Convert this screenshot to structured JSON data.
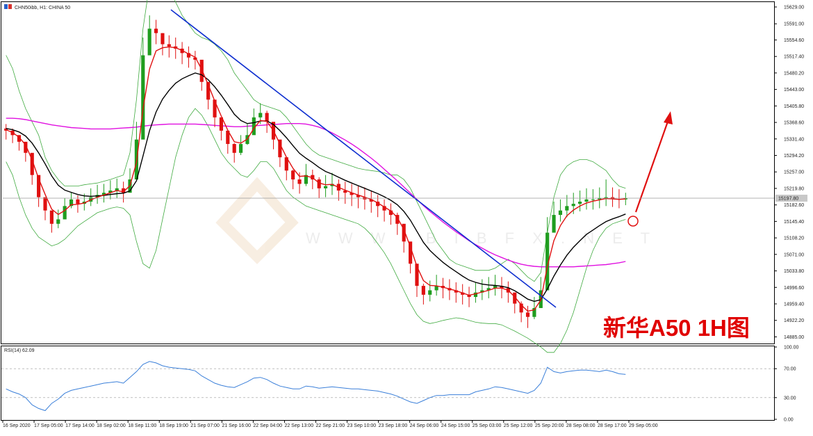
{
  "header": {
    "symbol_text": "CHN50ibb, H1:  CHINA 50"
  },
  "annotation": {
    "title": "新华A50 1H图"
  },
  "watermark": {
    "text": "W W W . B I B F X . N E T"
  },
  "colors": {
    "bull": "#1f9d1f",
    "bear": "#e01010",
    "ema_fast": "#e01010",
    "ema_slow": "#000000",
    "ma_long": "#e010e0",
    "bands": "#3faa3f",
    "trendline": "#1030d0",
    "arrow": "#e01010",
    "rsi": "#3a7fd9",
    "current_price_bg": "#c8c8c8"
  },
  "chart_data": [
    {
      "type": "candlestick",
      "symbol": "CHN50ibb",
      "timeframe": "H1",
      "instrument": "CHINA 50",
      "ylim": [
        14870,
        15640
      ],
      "y_ticks": [
        15629.0,
        15591.0,
        15554.6,
        15517.4,
        15480.2,
        15443.0,
        15405.8,
        15368.6,
        15331.4,
        15294.2,
        15257.0,
        15219.8,
        15182.6,
        15145.4,
        15108.2,
        15071.0,
        15033.8,
        14996.6,
        14959.4,
        14922.2,
        14885.0
      ],
      "current_price": 15197.8,
      "x_labels": [
        "16 Sep 2020",
        "17 Sep 05:00",
        "17 Sep 14:00",
        "18 Sep 02:00",
        "18 Sep 11:00",
        "18 Sep 19:00",
        "21 Sep 07:00",
        "21 Sep 16:00",
        "22 Sep 04:00",
        "22 Sep 13:00",
        "22 Sep 21:00",
        "23 Sep 10:00",
        "23 Sep 18:00",
        "24 Sep 06:00",
        "24 Sep 15:00",
        "25 Sep 03:00",
        "25 Sep 12:00",
        "25 Sep 20:00",
        "28 Sep 08:00",
        "28 Sep 17:00",
        "29 Sep 05:00"
      ],
      "close": [
        15350,
        15340,
        15325,
        15300,
        15250,
        15200,
        15170,
        15140,
        15150,
        15180,
        15195,
        15185,
        15190,
        15200,
        15205,
        15210,
        15215,
        15220,
        15210,
        15240,
        15330,
        15520,
        15580,
        15570,
        15545,
        15540,
        15535,
        15525,
        15515,
        15510,
        15460,
        15420,
        15380,
        15350,
        15320,
        15300,
        15320,
        15340,
        15380,
        15390,
        15370,
        15330,
        15290,
        15260,
        15240,
        15230,
        15250,
        15240,
        15220,
        15225,
        15230,
        15215,
        15210,
        15205,
        15200,
        15195,
        15190,
        15180,
        15170,
        15160,
        15140,
        15100,
        15050,
        15000,
        14980,
        14990,
        15000,
        14995,
        14990,
        14985,
        14980,
        14975,
        14985,
        14990,
        14995,
        15000,
        14995,
        14985,
        14960,
        14940,
        14930,
        14950,
        14990,
        15120,
        15160,
        15170,
        15180,
        15185,
        15190,
        15195,
        15195,
        15198,
        15200,
        15196,
        15195,
        15197.8
      ],
      "high": [
        15365,
        15355,
        15340,
        15320,
        15275,
        15225,
        15195,
        15165,
        15172,
        15198,
        15212,
        15204,
        15208,
        15220,
        15228,
        15230,
        15238,
        15242,
        15235,
        15265,
        15370,
        15560,
        15610,
        15600,
        15570,
        15565,
        15560,
        15550,
        15540,
        15530,
        15480,
        15445,
        15405,
        15375,
        15340,
        15322,
        15340,
        15365,
        15400,
        15412,
        15395,
        15355,
        15312,
        15285,
        15262,
        15256,
        15275,
        15262,
        15245,
        15250,
        15255,
        15240,
        15235,
        15230,
        15225,
        15222,
        15215,
        15205,
        15195,
        15186,
        15165,
        15125,
        15075,
        15030,
        15005,
        15012,
        15025,
        15018,
        15015,
        15008,
        15004,
        14998,
        15008,
        15015,
        15020,
        15025,
        15020,
        15010,
        14985,
        14965,
        14955,
        14975,
        15020,
        15155,
        15190,
        15195,
        15205,
        15210,
        15215,
        15220,
        15218,
        15222,
        15240,
        15222,
        15218,
        15210
      ],
      "low": [
        15330,
        15322,
        15305,
        15280,
        15228,
        15178,
        15148,
        15120,
        15130,
        15160,
        15175,
        15165,
        15170,
        15180,
        15185,
        15188,
        15195,
        15198,
        15188,
        15215,
        15300,
        15480,
        15552,
        15545,
        15520,
        15515,
        15512,
        15500,
        15492,
        15488,
        15440,
        15398,
        15358,
        15328,
        15298,
        15278,
        15295,
        15318,
        15355,
        15365,
        15345,
        15308,
        15268,
        15238,
        15218,
        15208,
        15225,
        15218,
        15198,
        15200,
        15205,
        15192,
        15185,
        15180,
        15175,
        15172,
        15165,
        15155,
        15145,
        15138,
        15115,
        15075,
        15028,
        14975,
        14958,
        14965,
        14978,
        14972,
        14968,
        14962,
        14958,
        14952,
        14962,
        14968,
        14972,
        14978,
        14972,
        14962,
        14938,
        14918,
        14905,
        14925,
        14965,
        15090,
        15135,
        15145,
        15155,
        15162,
        15168,
        15172,
        15172,
        15175,
        15180,
        15178,
        15175,
        15182
      ],
      "ema_fast": [
        15352,
        15346,
        15335,
        15318,
        15284,
        15242,
        15206,
        15173,
        15161,
        15170,
        15183,
        15184,
        15187,
        15194,
        15200,
        15205,
        15210,
        15215,
        15212,
        15226,
        15278,
        15399,
        15489,
        15530,
        15537,
        15539,
        15537,
        15531,
        15523,
        15516,
        15488,
        15454,
        15417,
        15383,
        15351,
        15325,
        15322,
        15331,
        15355,
        15373,
        15371,
        15350,
        15320,
        15290,
        15265,
        15247,
        15248,
        15244,
        15232,
        15228,
        15229,
        15222,
        15216,
        15210,
        15205,
        15200,
        15195,
        15187,
        15178,
        15169,
        15154,
        15127,
        15088,
        15044,
        15012,
        15001,
        15000,
        14997,
        14993,
        14989,
        14984,
        14979,
        14982,
        14986,
        14990,
        14995,
        14995,
        14990,
        14975,
        14957,
        14943,
        14946,
        14968,
        15044,
        15102,
        15136,
        15158,
        15171,
        15180,
        15187,
        15191,
        15194,
        15197,
        15196,
        15195,
        15196
      ],
      "ema_slow": [
        15355,
        15352,
        15347,
        15338,
        15322,
        15300,
        15275,
        15248,
        15227,
        15216,
        15211,
        15206,
        15203,
        15202,
        15203,
        15204,
        15206,
        15208,
        15209,
        15214,
        15237,
        15293,
        15350,
        15392,
        15421,
        15441,
        15457,
        15467,
        15474,
        15480,
        15476,
        15465,
        15449,
        15430,
        15409,
        15387,
        15373,
        15366,
        15368,
        15372,
        15372,
        15364,
        15350,
        15334,
        15316,
        15299,
        15288,
        15278,
        15267,
        15258,
        15252,
        15245,
        15238,
        15232,
        15226,
        15220,
        15214,
        15208,
        15201,
        15193,
        15183,
        15168,
        15148,
        15123,
        15098,
        15080,
        15066,
        15053,
        15042,
        15032,
        15022,
        15013,
        15008,
        15004,
        15002,
        15001,
        14999,
        14996,
        14989,
        14980,
        14970,
        14965,
        14969,
        14993,
        15022,
        15047,
        15069,
        15087,
        15102,
        15116,
        15126,
        15136,
        15145,
        15151,
        15156,
        15162
      ],
      "ma_long": [
        15378,
        15378,
        15377,
        15375,
        15372,
        15369,
        15366,
        15363,
        15361,
        15359,
        15357,
        15356,
        15355,
        15354,
        15354,
        15354,
        15354,
        15355,
        15356,
        15357,
        15358,
        15360,
        15362,
        15363,
        15364,
        15365,
        15365,
        15365,
        15365,
        15365,
        15364,
        15363,
        15362,
        15361,
        15360,
        15359,
        15359,
        15360,
        15361,
        15362,
        15363,
        15364,
        15365,
        15366,
        15366,
        15366,
        15365,
        15362,
        15358,
        15352,
        15345,
        15337,
        15329,
        15320,
        15310,
        15299,
        15288,
        15276,
        15263,
        15250,
        15237,
        15223,
        15209,
        15195,
        15181,
        15168,
        15156,
        15144,
        15133,
        15122,
        15112,
        15102,
        15093,
        15085,
        15077,
        15070,
        15064,
        15058,
        15053,
        15049,
        15046,
        15044,
        15043,
        15043,
        15043,
        15043,
        15043,
        15043,
        15044,
        15045,
        15046,
        15047,
        15048,
        15050,
        15052,
        15055
      ],
      "bb_upper": [
        15520,
        15490,
        15440,
        15400,
        15370,
        15340,
        15290,
        15260,
        15240,
        15225,
        15225,
        15225,
        15228,
        15230,
        15232,
        15236,
        15240,
        15245,
        15250,
        15300,
        15420,
        15580,
        15680,
        15720,
        15700,
        15670,
        15640,
        15610,
        15590,
        15570,
        15560,
        15555,
        15545,
        15530,
        15510,
        15480,
        15460,
        15440,
        15420,
        15410,
        15405,
        15400,
        15395,
        15380,
        15360,
        15340,
        15320,
        15305,
        15295,
        15290,
        15285,
        15280,
        15275,
        15270,
        15265,
        15262,
        15260,
        15258,
        15255,
        15250,
        15250,
        15240,
        15220,
        15190,
        15160,
        15130,
        15100,
        15080,
        15060,
        15050,
        15045,
        15040,
        15035,
        15035,
        15035,
        15040,
        15050,
        15060,
        15050,
        15035,
        15020,
        15010,
        15030,
        15120,
        15200,
        15250,
        15270,
        15280,
        15285,
        15285,
        15280,
        15270,
        15260,
        15240,
        15225,
        15220
      ],
      "bb_lower": [
        15280,
        15250,
        15200,
        15160,
        15130,
        15110,
        15100,
        15090,
        15095,
        15105,
        15120,
        15135,
        15145,
        15155,
        15165,
        15170,
        15175,
        15178,
        15175,
        15160,
        15100,
        15050,
        15040,
        15080,
        15150,
        15220,
        15290,
        15340,
        15380,
        15400,
        15385,
        15360,
        15330,
        15300,
        15280,
        15265,
        15250,
        15245,
        15260,
        15280,
        15280,
        15265,
        15240,
        15215,
        15200,
        15190,
        15180,
        15175,
        15170,
        15165,
        15160,
        15155,
        15150,
        15145,
        15140,
        15130,
        15115,
        15095,
        15075,
        15050,
        15020,
        14990,
        14960,
        14935,
        14920,
        14915,
        14918,
        14922,
        14925,
        14928,
        14926,
        14922,
        14918,
        14916,
        14915,
        14915,
        14912,
        14905,
        14898,
        14890,
        14882,
        14872,
        14862,
        14850,
        14850,
        14870,
        14900,
        14940,
        14990,
        15040,
        15080,
        15110,
        15130,
        15140,
        15145,
        15150
      ]
    },
    {
      "type": "line",
      "indicator": "RSI(14)",
      "header_text": "RSI(14) 62.09",
      "ylim": [
        0,
        100
      ],
      "y_ticks": [
        100.0,
        70.0,
        30.0,
        0.0
      ],
      "levels": [
        70,
        30
      ],
      "last_value": 62.09,
      "values": [
        42,
        38,
        35,
        30,
        20,
        15,
        12,
        22,
        28,
        36,
        40,
        42,
        44,
        46,
        48,
        50,
        51,
        52,
        50,
        58,
        66,
        76,
        80,
        78,
        74,
        72,
        71,
        70,
        69,
        67,
        60,
        55,
        50,
        47,
        45,
        44,
        48,
        52,
        57,
        58,
        55,
        50,
        46,
        44,
        42,
        42,
        46,
        45,
        43,
        44,
        45,
        44,
        43,
        42,
        42,
        41,
        40,
        39,
        37,
        35,
        32,
        28,
        24,
        22,
        26,
        30,
        33,
        33,
        34,
        34,
        34,
        34,
        38,
        40,
        42,
        45,
        44,
        42,
        40,
        38,
        36,
        40,
        50,
        72,
        66,
        64,
        66,
        67,
        68,
        68,
        67,
        66,
        68,
        66,
        63,
        62.09
      ]
    }
  ]
}
